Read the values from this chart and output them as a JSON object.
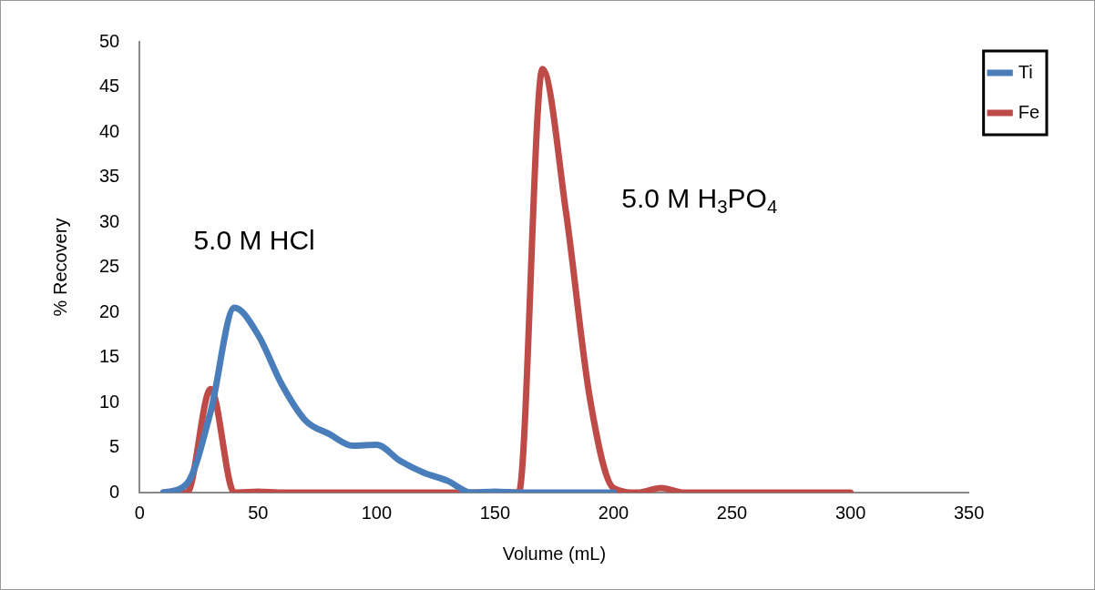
{
  "chart_data": {
    "type": "line",
    "xlabel": "Volume (mL)",
    "ylabel": "% Recovery",
    "xlim": [
      0,
      350
    ],
    "xticks": [
      0,
      50,
      100,
      150,
      200,
      250,
      300,
      350
    ],
    "ylim": [
      0,
      50
    ],
    "yticks": [
      0,
      5,
      10,
      15,
      20,
      25,
      30,
      35,
      40,
      45,
      50
    ],
    "grid": false,
    "legend": "right",
    "marker": "none",
    "line_style": "solid",
    "series": [
      {
        "name": "Ti",
        "color": "#4a7ebb",
        "x": [
          10,
          20,
          30,
          40,
          50,
          60,
          70,
          80,
          90,
          100,
          110,
          120,
          130,
          140,
          150,
          160,
          170,
          180,
          190,
          200
        ],
        "values": [
          0,
          1,
          9,
          20.5,
          17.5,
          12,
          8,
          6.5,
          5.2,
          5.3,
          3.5,
          2.2,
          1.3,
          0,
          0.1,
          0,
          0,
          0,
          0,
          0
        ]
      },
      {
        "name": "Fe",
        "color": "#be4b48",
        "x": [
          10,
          20,
          30,
          40,
          50,
          60,
          70,
          80,
          90,
          100,
          110,
          120,
          130,
          140,
          150,
          160,
          170,
          180,
          190,
          200,
          210,
          220,
          230,
          240,
          250,
          260,
          270,
          280,
          290,
          300
        ],
        "values": [
          0,
          0,
          11.5,
          0,
          0.1,
          0,
          0,
          0,
          0,
          0,
          0,
          0,
          0,
          0,
          0,
          0,
          47,
          31,
          10.5,
          0.5,
          0,
          0.5,
          0,
          0,
          0,
          0,
          0,
          0,
          0,
          0
        ]
      }
    ],
    "annotations": [
      "5.0 M HCl",
      "5.0 M H$_{3}$PO$_{4}$"
    ]
  }
}
